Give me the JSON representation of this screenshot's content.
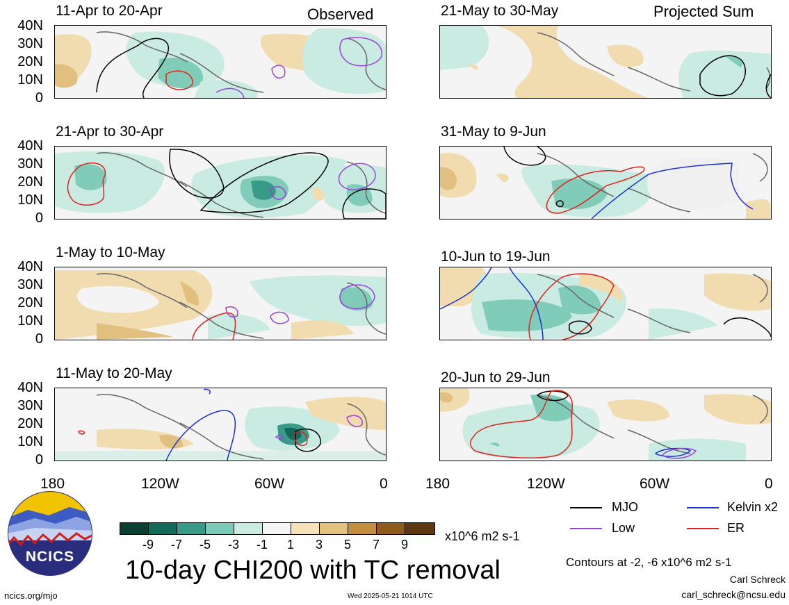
{
  "header": {
    "observed_label": "Observed",
    "projected_label": "Projected Sum"
  },
  "panels": {
    "left": [
      {
        "period": "11-Apr to 20-Apr"
      },
      {
        "period": "21-Apr to 30-Apr"
      },
      {
        "period": "1-May to 10-May"
      },
      {
        "period": "11-May to 20-May"
      }
    ],
    "right": [
      {
        "period": "21-May to 30-May"
      },
      {
        "period": "31-May to 9-Jun"
      },
      {
        "period": "10-Jun to 19-Jun"
      },
      {
        "period": "20-Jun to 29-Jun"
      }
    ]
  },
  "axes": {
    "y_ticks": [
      "40N",
      "30N",
      "20N",
      "10N",
      "0"
    ],
    "x_ticks": [
      "180",
      "120W",
      "60W",
      "0"
    ]
  },
  "colorbar": {
    "tick_labels": [
      "-9",
      "-7",
      "-5",
      "-3",
      "-1",
      "1",
      "3",
      "5",
      "7",
      "9"
    ],
    "colors": [
      "#0b3f34",
      "#146a5a",
      "#3a9a88",
      "#7ccbb8",
      "#c9ebe1",
      "#f5f5f5",
      "#f5e2b8",
      "#e3c27d",
      "#c28e3e",
      "#8f5a1e",
      "#5e3810"
    ],
    "units": "x10^6 m2 s-1"
  },
  "legend": {
    "items": [
      {
        "label": "MJO",
        "color": "#000000"
      },
      {
        "label": "Kelvin x2",
        "color": "#1a2fd6"
      },
      {
        "label": "Low",
        "color": "#9a3fe0"
      },
      {
        "label": "ER",
        "color": "#e0201c"
      }
    ],
    "contour_note": "Contours at -2, -6 x10^6 m2 s-1"
  },
  "footer": {
    "main_title": "10-day CHI200 with TC removal",
    "logo_text": "NCICS",
    "website": "ncics.org/mjo",
    "timestamp": "Wed 2025-05-21 1014 UTC",
    "author": "Carl Schreck",
    "email": "carl_schreck@ncsu.edu"
  }
}
